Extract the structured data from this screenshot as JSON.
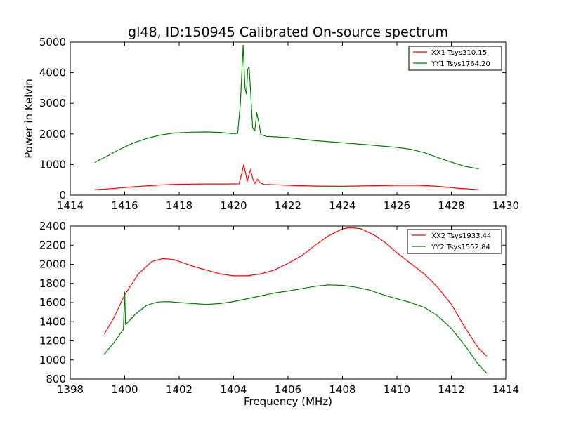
{
  "colors": {
    "xx": "#ff0000",
    "yy": "#008000",
    "axis": "#000000",
    "background": "#ffffff"
  },
  "chart_data": [
    {
      "type": "line",
      "title": "gl48, ID:150945 Calibrated On-source spectrum",
      "xlabel": "",
      "ylabel": "Power in Kelvin",
      "xlim": [
        1414,
        1430
      ],
      "ylim": [
        0,
        5000
      ],
      "xticks": [
        1414,
        1416,
        1418,
        1420,
        1422,
        1424,
        1426,
        1428,
        1430
      ],
      "yticks": [
        0,
        1000,
        2000,
        3000,
        4000,
        5000
      ],
      "legend_position": "top-right",
      "series": [
        {
          "name": "XX1 Tsys310.15",
          "color": "#ff0000",
          "points": [
            [
              1414.9,
              180
            ],
            [
              1415.5,
              210
            ],
            [
              1416.0,
              250
            ],
            [
              1416.5,
              285
            ],
            [
              1417.0,
              315
            ],
            [
              1417.5,
              340
            ],
            [
              1418.0,
              355
            ],
            [
              1419.0,
              365
            ],
            [
              1419.8,
              365
            ],
            [
              1420.2,
              370
            ],
            [
              1420.3,
              700
            ],
            [
              1420.37,
              990
            ],
            [
              1420.45,
              700
            ],
            [
              1420.5,
              450
            ],
            [
              1420.55,
              620
            ],
            [
              1420.62,
              830
            ],
            [
              1420.7,
              550
            ],
            [
              1420.78,
              380
            ],
            [
              1420.88,
              520
            ],
            [
              1420.95,
              420
            ],
            [
              1421.1,
              350
            ],
            [
              1421.5,
              340
            ],
            [
              1422.0,
              320
            ],
            [
              1423.0,
              295
            ],
            [
              1424.0,
              290
            ],
            [
              1425.0,
              305
            ],
            [
              1426.0,
              320
            ],
            [
              1426.8,
              320
            ],
            [
              1427.5,
              290
            ],
            [
              1428.2,
              230
            ],
            [
              1429.0,
              180
            ]
          ]
        },
        {
          "name": "YY1 Tsys1764.20",
          "color": "#008000",
          "points": [
            [
              1414.9,
              1070
            ],
            [
              1415.3,
              1250
            ],
            [
              1415.8,
              1490
            ],
            [
              1416.3,
              1700
            ],
            [
              1416.8,
              1850
            ],
            [
              1417.3,
              1960
            ],
            [
              1417.8,
              2030
            ],
            [
              1418.5,
              2060
            ],
            [
              1419.0,
              2065
            ],
            [
              1419.5,
              2050
            ],
            [
              1420.0,
              2010
            ],
            [
              1420.15,
              2020
            ],
            [
              1420.25,
              3000
            ],
            [
              1420.35,
              4900
            ],
            [
              1420.42,
              3500
            ],
            [
              1420.47,
              3300
            ],
            [
              1420.52,
              4100
            ],
            [
              1420.57,
              4200
            ],
            [
              1420.62,
              3500
            ],
            [
              1420.7,
              2200
            ],
            [
              1420.78,
              2100
            ],
            [
              1420.85,
              2700
            ],
            [
              1420.92,
              2400
            ],
            [
              1421.0,
              1980
            ],
            [
              1421.2,
              1920
            ],
            [
              1422.0,
              1880
            ],
            [
              1423.0,
              1780
            ],
            [
              1424.0,
              1710
            ],
            [
              1425.0,
              1640
            ],
            [
              1426.0,
              1560
            ],
            [
              1426.5,
              1500
            ],
            [
              1427.0,
              1390
            ],
            [
              1427.5,
              1230
            ],
            [
              1428.0,
              1080
            ],
            [
              1428.5,
              940
            ],
            [
              1429.0,
              860
            ]
          ]
        }
      ]
    },
    {
      "type": "line",
      "title": "",
      "xlabel": "Frequency (MHz)",
      "ylabel": "",
      "xlim": [
        1398,
        1414
      ],
      "ylim": [
        800,
        2400
      ],
      "xticks": [
        1398,
        1400,
        1402,
        1404,
        1406,
        1408,
        1410,
        1412,
        1414
      ],
      "yticks": [
        800,
        1000,
        1200,
        1400,
        1600,
        1800,
        2000,
        2200,
        2400
      ],
      "legend_position": "top-right",
      "series": [
        {
          "name": "XX2 Tsys1933.44",
          "color": "#ff0000",
          "points": [
            [
              1399.25,
              1270
            ],
            [
              1399.6,
              1440
            ],
            [
              1400.0,
              1680
            ],
            [
              1400.5,
              1900
            ],
            [
              1401.0,
              2030
            ],
            [
              1401.4,
              2060
            ],
            [
              1401.8,
              2050
            ],
            [
              1402.5,
              1980
            ],
            [
              1403.0,
              1940
            ],
            [
              1403.5,
              1900
            ],
            [
              1404.0,
              1880
            ],
            [
              1404.5,
              1880
            ],
            [
              1405.0,
              1900
            ],
            [
              1405.5,
              1940
            ],
            [
              1406.0,
              2010
            ],
            [
              1406.5,
              2090
            ],
            [
              1407.0,
              2200
            ],
            [
              1407.5,
              2300
            ],
            [
              1408.0,
              2370
            ],
            [
              1408.3,
              2385
            ],
            [
              1408.7,
              2370
            ],
            [
              1409.2,
              2300
            ],
            [
              1409.6,
              2220
            ],
            [
              1410.0,
              2120
            ],
            [
              1410.5,
              2010
            ],
            [
              1411.0,
              1900
            ],
            [
              1411.5,
              1760
            ],
            [
              1412.0,
              1580
            ],
            [
              1412.5,
              1340
            ],
            [
              1413.0,
              1120
            ],
            [
              1413.3,
              1040
            ]
          ]
        },
        {
          "name": "YY2 Tsys1552.84",
          "color": "#008000",
          "points": [
            [
              1399.25,
              1060
            ],
            [
              1399.6,
              1180
            ],
            [
              1399.95,
              1320
            ],
            [
              1400.0,
              1710
            ],
            [
              1400.03,
              1370
            ],
            [
              1400.4,
              1480
            ],
            [
              1400.8,
              1570
            ],
            [
              1401.2,
              1605
            ],
            [
              1401.6,
              1610
            ],
            [
              1402.0,
              1600
            ],
            [
              1402.5,
              1590
            ],
            [
              1403.0,
              1580
            ],
            [
              1403.5,
              1590
            ],
            [
              1404.0,
              1610
            ],
            [
              1404.5,
              1640
            ],
            [
              1405.0,
              1670
            ],
            [
              1405.5,
              1700
            ],
            [
              1406.0,
              1720
            ],
            [
              1406.5,
              1745
            ],
            [
              1407.0,
              1770
            ],
            [
              1407.5,
              1785
            ],
            [
              1408.0,
              1780
            ],
            [
              1408.5,
              1760
            ],
            [
              1409.0,
              1730
            ],
            [
              1409.5,
              1680
            ],
            [
              1410.0,
              1640
            ],
            [
              1410.5,
              1600
            ],
            [
              1411.0,
              1550
            ],
            [
              1411.5,
              1460
            ],
            [
              1412.0,
              1330
            ],
            [
              1412.5,
              1150
            ],
            [
              1413.0,
              950
            ],
            [
              1413.3,
              860
            ]
          ]
        }
      ]
    }
  ]
}
